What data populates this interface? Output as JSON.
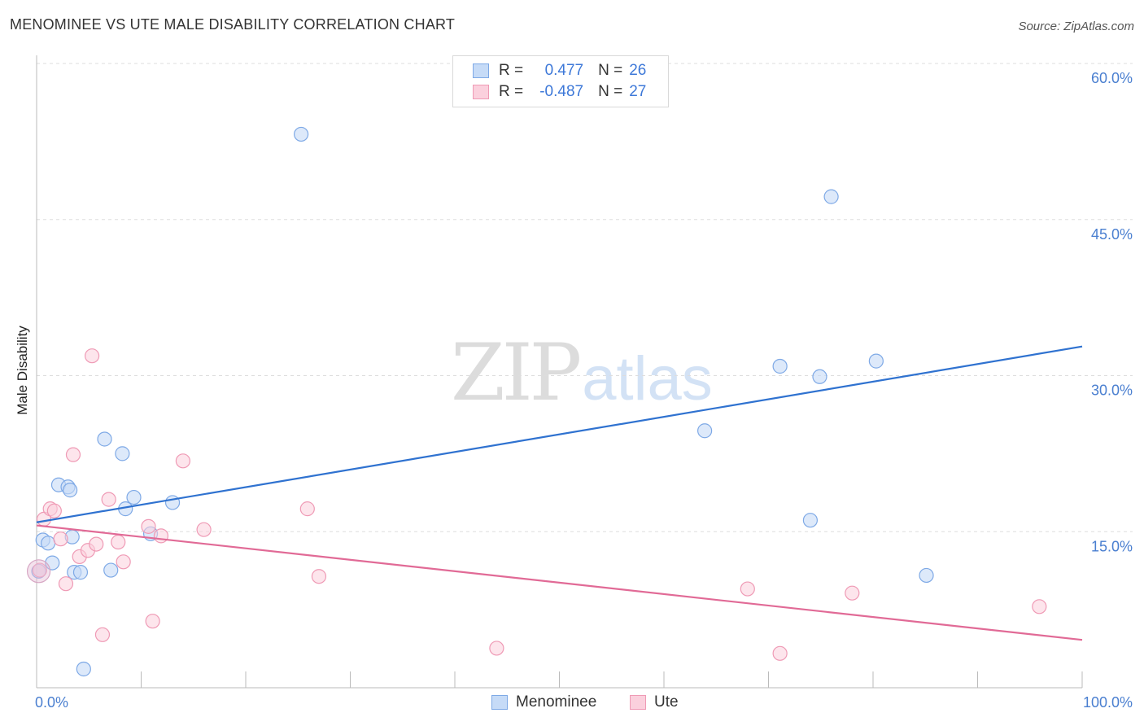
{
  "header": {
    "title": "MENOMINEE VS UTE MALE DISABILITY CORRELATION CHART",
    "source": "Source: ZipAtlas.com"
  },
  "watermark": {
    "zip": "ZIP",
    "atlas": "atlas"
  },
  "legend": {
    "rows": [
      {
        "r_label": "R =",
        "r_value": "0.477",
        "n_label": "N =",
        "n_value": "26",
        "color": "#9fc2ef"
      },
      {
        "r_label": "R =",
        "r_value": "-0.487",
        "n_label": "N =",
        "n_value": "27",
        "color": "#f6b4c8"
      }
    ]
  },
  "bottom_legend": [
    "Menominee",
    "Ute"
  ],
  "chart_data": {
    "type": "scatter",
    "title": "MENOMINEE VS UTE MALE DISABILITY CORRELATION CHART",
    "xlabel": "",
    "ylabel": "Male Disability",
    "xlim": [
      0,
      100
    ],
    "ylim": [
      0,
      60
    ],
    "x_tick_labels": [
      "0.0%",
      "100.0%"
    ],
    "y_ticks": [
      15,
      30,
      45,
      60
    ],
    "y_tick_labels": [
      "15.0%",
      "30.0%",
      "45.0%",
      "60.0%"
    ],
    "grid": true,
    "legend_position": "top-center",
    "series": [
      {
        "name": "Menominee",
        "color": "#9fc2ef",
        "line_color": "#2f72d0",
        "trend": [
          [
            0,
            15.9
          ],
          [
            100,
            32.8
          ]
        ],
        "points": [
          [
            0.6,
            14.2
          ],
          [
            1.1,
            13.9
          ],
          [
            1.5,
            12.0
          ],
          [
            2.1,
            19.5
          ],
          [
            3.0,
            19.3
          ],
          [
            3.2,
            19.0
          ],
          [
            3.4,
            14.5
          ],
          [
            3.6,
            11.1
          ],
          [
            4.2,
            11.1
          ],
          [
            4.5,
            1.8
          ],
          [
            6.5,
            23.9
          ],
          [
            7.1,
            11.3
          ],
          [
            8.2,
            22.5
          ],
          [
            8.5,
            17.2
          ],
          [
            9.3,
            18.3
          ],
          [
            10.9,
            14.8
          ],
          [
            13.0,
            17.8
          ],
          [
            25.3,
            53.2
          ],
          [
            63.9,
            24.7
          ],
          [
            71.1,
            30.9
          ],
          [
            74.0,
            16.1
          ],
          [
            74.9,
            29.9
          ],
          [
            76.0,
            47.2
          ],
          [
            80.3,
            31.4
          ],
          [
            85.1,
            10.8
          ],
          [
            0.2,
            11.2
          ]
        ]
      },
      {
        "name": "Ute",
        "color": "#f6b4c8",
        "line_color": "#e16a96",
        "trend": [
          [
            0,
            15.6
          ],
          [
            100,
            4.6
          ]
        ],
        "points": [
          [
            0.3,
            11.3
          ],
          [
            0.7,
            16.2
          ],
          [
            1.3,
            17.2
          ],
          [
            1.7,
            17.0
          ],
          [
            2.3,
            14.3
          ],
          [
            2.8,
            10.0
          ],
          [
            3.5,
            22.4
          ],
          [
            4.1,
            12.6
          ],
          [
            4.9,
            13.2
          ],
          [
            5.3,
            31.9
          ],
          [
            5.7,
            13.8
          ],
          [
            6.3,
            5.1
          ],
          [
            6.9,
            18.1
          ],
          [
            7.8,
            14.0
          ],
          [
            8.3,
            12.1
          ],
          [
            10.7,
            15.5
          ],
          [
            11.1,
            6.4
          ],
          [
            11.9,
            14.6
          ],
          [
            14.0,
            21.8
          ],
          [
            16.0,
            15.2
          ],
          [
            25.9,
            17.2
          ],
          [
            27.0,
            10.7
          ],
          [
            44.0,
            3.8
          ],
          [
            68.0,
            9.5
          ],
          [
            71.1,
            3.3
          ],
          [
            78.0,
            9.1
          ],
          [
            95.9,
            7.8
          ]
        ]
      }
    ]
  }
}
